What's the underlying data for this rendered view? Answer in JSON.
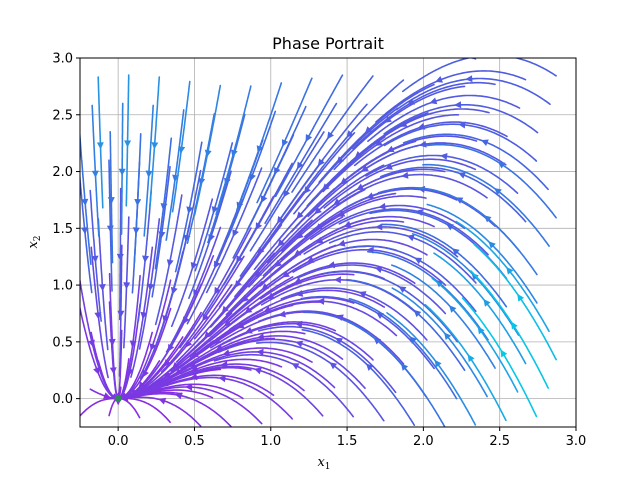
{
  "chart_data": {
    "type": "streamplot",
    "title": "Phase Portrait",
    "xlabel": "x",
    "xlabel_sub": "1",
    "ylabel": "x",
    "ylabel_sub": "2",
    "xlim": [
      -0.25,
      3.0
    ],
    "ylim": [
      -0.25,
      3.0
    ],
    "xticks": [
      0.0,
      0.5,
      1.0,
      1.5,
      2.0,
      2.5,
      3.0
    ],
    "xtick_labels": [
      "0.0",
      "0.5",
      "1.0",
      "1.5",
      "2.0",
      "2.5",
      "3.0"
    ],
    "yticks": [
      0.0,
      0.5,
      1.0,
      1.5,
      2.0,
      2.5,
      3.0
    ],
    "ytick_labels": [
      "0.0",
      "0.5",
      "1.0",
      "1.5",
      "2.0",
      "2.5",
      "3.0"
    ],
    "grid": true,
    "vector_field": {
      "dx1_dt": "-x1",
      "dx2_dt": "-2*x2 + x1^2"
    },
    "equilibrium_point": {
      "x": 0.0,
      "y": 0.0,
      "color": "#2e8b57"
    },
    "colormap": {
      "low": "#8a2be2",
      "mid": "#4169e1",
      "high": "#00d2e6"
    },
    "accent_arrow_color": "#c0504d"
  }
}
